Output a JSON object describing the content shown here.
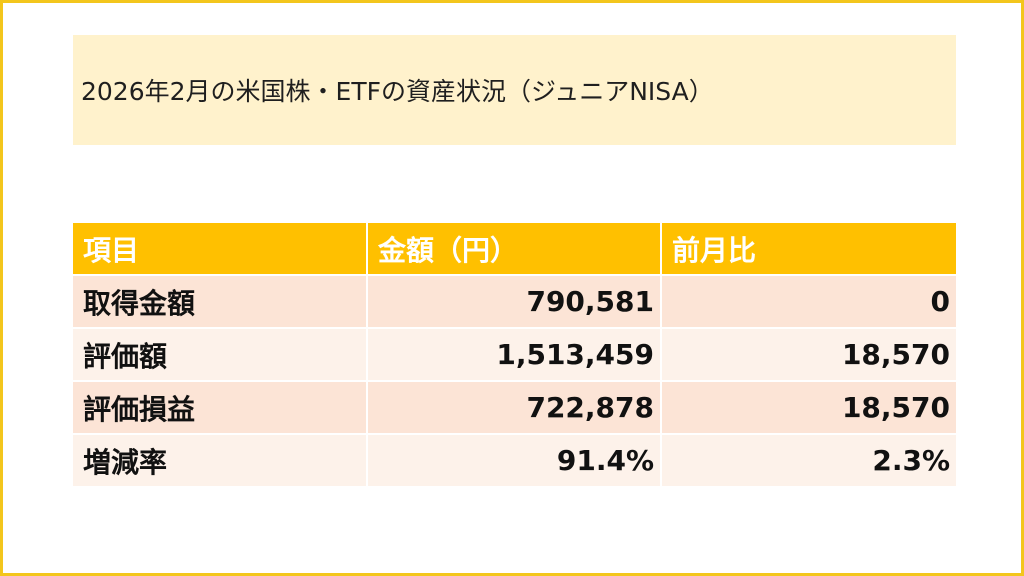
{
  "title": "2026年2月の米国株・ETFの資産状況（ジュニアNISA）",
  "colors": {
    "border": "#f3c61c",
    "title_bg": "#fff2cc",
    "header_bg": "#ffc000",
    "header_text": "#ffffff",
    "row_dark": "#fce4d6",
    "row_light": "#fdf2ea"
  },
  "table": {
    "headers": [
      "項目",
      "金額（円）",
      "前月比"
    ],
    "rows": [
      {
        "item": "取得金額",
        "amount": "790,581",
        "mom": "0"
      },
      {
        "item": "評価額",
        "amount": "1,513,459",
        "mom": "18,570"
      },
      {
        "item": "評価損益",
        "amount": "722,878",
        "mom": "18,570"
      },
      {
        "item": "増減率",
        "amount": "91.4%",
        "mom": "2.3%"
      }
    ]
  }
}
